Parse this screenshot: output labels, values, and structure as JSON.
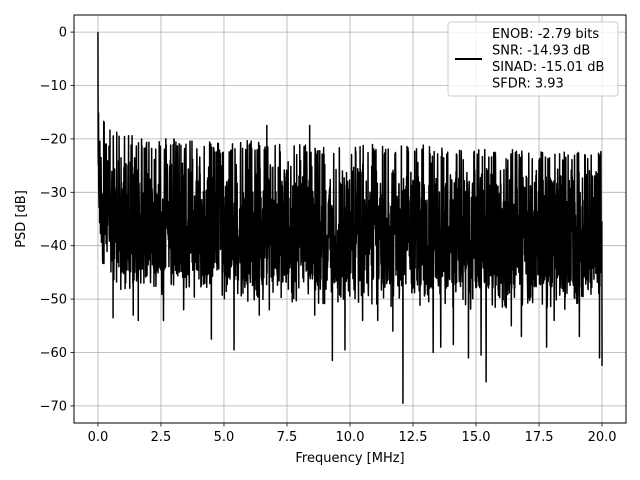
{
  "chart_data": {
    "type": "line",
    "title": "",
    "xlabel": "Frequency [MHz]",
    "ylabel": "PSD [dB]",
    "xlim": [
      -0.95,
      20.95
    ],
    "ylim": [
      -73.2,
      3.2
    ],
    "xticks": [
      0.0,
      2.5,
      5.0,
      7.5,
      10.0,
      12.5,
      15.0,
      17.5,
      20.0
    ],
    "xtick_labels": [
      "0.0",
      "2.5",
      "5.0",
      "7.5",
      "10.0",
      "12.5",
      "15.0",
      "17.5",
      "20.0"
    ],
    "yticks": [
      0,
      -10,
      -20,
      -30,
      -40,
      -50,
      -60,
      -70
    ],
    "ytick_labels": [
      "0",
      "−10",
      "−20",
      "−30",
      "−40",
      "−50",
      "−60",
      "−70"
    ],
    "grid": true,
    "legend_position": "top-right",
    "series": [
      {
        "name": "ENOB: -2.79 bits\nSNR: -14.93 dB\nSINAD: -15.01 dB\nSFDR: 3.93",
        "color": "#000000",
        "x": [
          0.0,
          0.05,
          0.1,
          0.2,
          0.35,
          0.5,
          1.0,
          2.0,
          3.0,
          4.0,
          5.0,
          6.0,
          7.0,
          8.0,
          9.0,
          10.0,
          11.0,
          12.0,
          13.0,
          14.0,
          15.0,
          16.0,
          17.0,
          18.0,
          19.0,
          20.0
        ],
        "upper_envelope": [
          0,
          -11,
          -14,
          -16,
          -17,
          -18,
          -19,
          -20,
          -20,
          -20,
          -21,
          -20,
          -21,
          -21,
          -21,
          -21,
          -21,
          -21,
          -21,
          -22,
          -22,
          -22,
          -22,
          -22,
          -22,
          -22
        ],
        "typical_lower": [
          -27,
          -36,
          -38,
          -40,
          -40,
          -42,
          -44,
          -44,
          -45,
          -45,
          -45,
          -46,
          -46,
          -46,
          -46,
          -46,
          -46,
          -47,
          -47,
          -47,
          -47,
          -47,
          -47,
          -47,
          -47,
          -47
        ],
        "deep_nulls": [
          {
            "x": 0.6,
            "y": -53.5
          },
          {
            "x": 1.4,
            "y": -53
          },
          {
            "x": 1.6,
            "y": -54
          },
          {
            "x": 2.6,
            "y": -54
          },
          {
            "x": 3.4,
            "y": -52
          },
          {
            "x": 4.5,
            "y": -57.5
          },
          {
            "x": 5.4,
            "y": -59.5
          },
          {
            "x": 6.4,
            "y": -53
          },
          {
            "x": 6.8,
            "y": -52
          },
          {
            "x": 8.6,
            "y": -53
          },
          {
            "x": 9.3,
            "y": -61.5
          },
          {
            "x": 9.8,
            "y": -59.5
          },
          {
            "x": 10.5,
            "y": -54
          },
          {
            "x": 11.1,
            "y": -54
          },
          {
            "x": 11.7,
            "y": -56
          },
          {
            "x": 12.1,
            "y": -69.5
          },
          {
            "x": 13.3,
            "y": -60
          },
          {
            "x": 13.6,
            "y": -59
          },
          {
            "x": 14.1,
            "y": -58.5
          },
          {
            "x": 14.7,
            "y": -61
          },
          {
            "x": 15.2,
            "y": -60.5
          },
          {
            "x": 15.4,
            "y": -65.5
          },
          {
            "x": 16.4,
            "y": -55
          },
          {
            "x": 16.8,
            "y": -57
          },
          {
            "x": 17.8,
            "y": -59
          },
          {
            "x": 18.1,
            "y": -54
          },
          {
            "x": 19.1,
            "y": -57
          },
          {
            "x": 19.9,
            "y": -61
          },
          {
            "x": 20.0,
            "y": -62.5
          }
        ],
        "tall_peaks": [
          {
            "x": 6.7,
            "y": -17.5
          },
          {
            "x": 8.4,
            "y": -17.5
          }
        ]
      }
    ]
  }
}
